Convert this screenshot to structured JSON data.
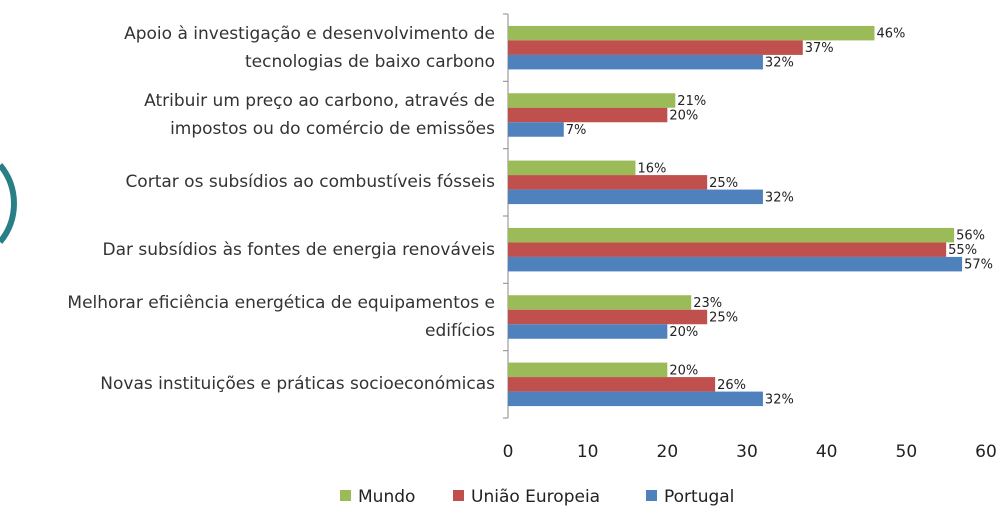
{
  "chart_data": {
    "type": "bar",
    "orientation": "horizontal",
    "categories": [
      "Apoio à investigação e desenvolvimento de\ntecnologias de baixo carbono",
      "Atribuir um preço ao carbono, através de\nimpostos ou do comércio de emissões",
      "Cortar os subsídios ao combustíveis fósseis",
      "Dar subsídios às fontes de energia renováveis",
      "Melhorar eficiência energética de equipamentos e edifícios",
      "Novas instituições e práticas socioeconómicas"
    ],
    "series": [
      {
        "name": "Mundo",
        "color": "#9bbb59",
        "values": [
          46,
          21,
          16,
          56,
          23,
          20
        ],
        "value_labels": [
          "46%",
          "21%",
          "16%",
          "56%",
          "23%",
          "20%"
        ]
      },
      {
        "name": "União Europeia",
        "color": "#c0504d",
        "values": [
          37,
          20,
          25,
          55,
          25,
          26
        ],
        "value_labels": [
          "37%",
          "20%",
          "25%",
          "55%",
          "25%",
          "26%"
        ]
      },
      {
        "name": "Portugal",
        "color": "#4f81bd",
        "values": [
          32,
          7,
          32,
          57,
          20,
          32
        ],
        "value_labels": [
          "32%",
          "7%",
          "32%",
          "57%",
          "20%",
          "32%"
        ]
      }
    ],
    "xlim": [
      0,
      60
    ],
    "xticks": [
      0,
      10,
      20,
      30,
      40,
      50,
      60
    ],
    "grid": false,
    "legend": "bottom"
  }
}
